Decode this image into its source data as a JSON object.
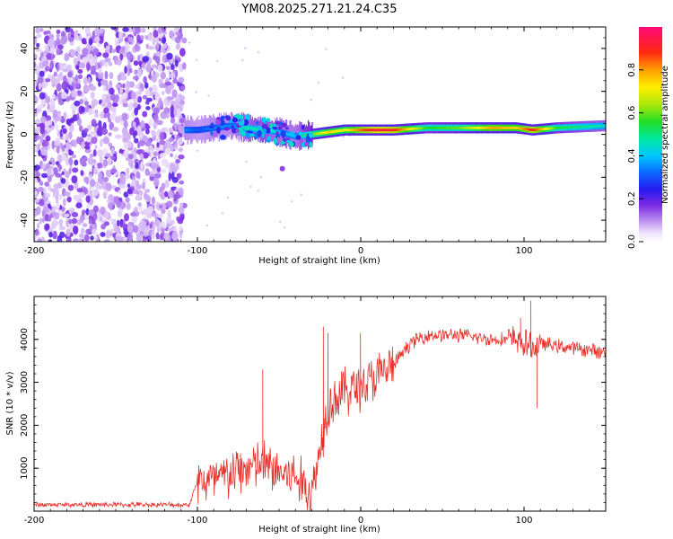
{
  "title": "YM08.2025.271.21.24.C35",
  "top_plot": {
    "xlabel": "Height of straight line (km)",
    "ylabel": "Frequency (Hz)",
    "xlim": [
      -200,
      150
    ],
    "ylim": [
      -50,
      50
    ],
    "xticks": [
      -200,
      -100,
      0,
      100
    ],
    "yticks": [
      -40,
      -20,
      0,
      20,
      40
    ],
    "colorbar": {
      "label": "Normalized spectral amplitude",
      "ticks": [
        "0.0",
        "0.2",
        "0.4",
        "0.6",
        "0.8"
      ],
      "tick_values": [
        0,
        0.2,
        0.4,
        0.6,
        0.8
      ],
      "range": [
        0,
        1
      ],
      "colormap": "rainbow (white-violet-blue-cyan-green-yellow-red-magenta)"
    }
  },
  "bottom_plot": {
    "xlabel": "Height of straight line (km)",
    "ylabel": "SNR (10 * v/v)",
    "xlim": [
      -200,
      150
    ],
    "ylim": [
      0,
      5000
    ],
    "xticks": [
      -200,
      -100,
      0,
      100
    ],
    "yticks": [
      1000,
      2000,
      3000,
      4000
    ],
    "line_color": "#e8302a"
  },
  "chart_data": [
    {
      "type": "heatmap",
      "title": "YM08.2025.271.21.24.C35",
      "xlabel": "Height of straight line (km)",
      "ylabel": "Frequency (Hz)",
      "xlim": [
        -200,
        150
      ],
      "ylim": [
        -50,
        50
      ],
      "description_values": {
        "noise_region_x": [
          -200,
          -108
        ],
        "signal_track": {
          "x": [
            -108,
            -100,
            -90,
            -80,
            -70,
            -60,
            -50,
            -40,
            -30,
            -20,
            -10,
            0,
            10,
            20,
            40,
            60,
            80,
            95,
            105,
            120,
            150
          ],
          "freq": [
            2,
            2,
            3,
            4,
            3,
            2,
            1,
            -1,
            0,
            1,
            2,
            2,
            2,
            2,
            3,
            3,
            3,
            3,
            2,
            3,
            4
          ],
          "amp": [
            0.35,
            0.3,
            0.35,
            0.35,
            0.45,
            0.5,
            0.4,
            0.4,
            0.6,
            0.75,
            0.7,
            0.85,
            0.95,
            0.9,
            0.55,
            0.6,
            0.8,
            0.75,
            0.9,
            0.55,
            0.45
          ]
        },
        "colorbar_range": [
          0,
          1
        ]
      }
    },
    {
      "type": "line",
      "xlabel": "Height of straight line (km)",
      "ylabel": "SNR (10 * v/v)",
      "xlim": [
        -200,
        150
      ],
      "ylim": [
        0,
        5000
      ],
      "x": [
        -200,
        -150,
        -105,
        -100,
        -90,
        -80,
        -70,
        -60,
        -50,
        -40,
        -30,
        -20,
        -10,
        0,
        10,
        20,
        30,
        40,
        60,
        80,
        95,
        100,
        105,
        110,
        130,
        150
      ],
      "values": [
        150,
        150,
        150,
        700,
        700,
        850,
        1000,
        1100,
        900,
        800,
        400,
        2500,
        2800,
        2900,
        3100,
        3400,
        3900,
        4100,
        4100,
        4000,
        4000,
        3900,
        3800,
        3900,
        3800,
        3700
      ],
      "spikes": {
        "x": [
          -60,
          -23,
          -20,
          0,
          98,
          104,
          108
        ],
        "values": [
          3300,
          4300,
          4150,
          4150,
          4500,
          4900,
          2400
        ]
      }
    }
  ]
}
